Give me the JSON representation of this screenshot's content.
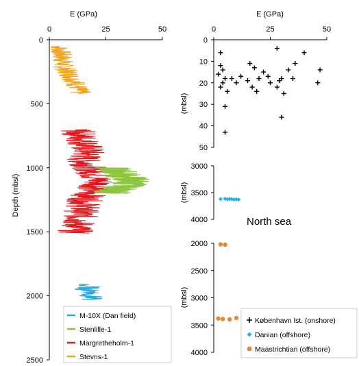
{
  "chart_data": [
    {
      "type": "line",
      "xlabel": "E (GPa)",
      "ylabel": "Depth (mbsl)",
      "xlim": [
        0,
        50
      ],
      "ylim": [
        2500,
        0
      ],
      "x_ticks": [
        "0",
        "25",
        "50"
      ],
      "y_ticks": [
        "0",
        "500",
        "1000",
        "1500",
        "2000",
        "2500"
      ],
      "legend_position": "bottom-right",
      "series": [
        {
          "name": "M-10X (Dan field)",
          "color": "#2aa7de",
          "depth_range": [
            1910,
            2030
          ],
          "profile": [
            [
              1910,
              14
            ],
            [
              1930,
              18
            ],
            [
              1950,
              16
            ],
            [
              1970,
              20
            ],
            [
              1990,
              17
            ],
            [
              2010,
              19
            ],
            [
              2030,
              18
            ]
          ],
          "spread": 5
        },
        {
          "name": "Stenlille-1",
          "color": "#8cc63f",
          "depth_range": [
            1000,
            1200
          ],
          "profile": [
            [
              1000,
              28
            ],
            [
              1040,
              31
            ],
            [
              1070,
              34
            ],
            [
              1100,
              37
            ],
            [
              1130,
              35
            ],
            [
              1160,
              31
            ],
            [
              1200,
              27
            ]
          ],
          "spread": 9
        },
        {
          "name": "Margretheholm-1",
          "color": "#e8151b",
          "depth_range": [
            700,
            1510
          ],
          "profile": [
            [
              700,
              12
            ],
            [
              760,
              14
            ],
            [
              820,
              16
            ],
            [
              880,
              17
            ],
            [
              940,
              15
            ],
            [
              1000,
              18
            ],
            [
              1060,
              20
            ],
            [
              1120,
              22
            ],
            [
              1180,
              19
            ],
            [
              1240,
              16
            ],
            [
              1300,
              15
            ],
            [
              1360,
              14
            ],
            [
              1420,
              13
            ],
            [
              1480,
              12
            ],
            [
              1510,
              11
            ]
          ],
          "spread": 8
        },
        {
          "name": "Stevns-1",
          "color": "#f2a51c",
          "depth_range": [
            50,
            420
          ],
          "profile": [
            [
              50,
              4
            ],
            [
              100,
              5
            ],
            [
              150,
              6
            ],
            [
              200,
              6
            ],
            [
              250,
              8
            ],
            [
              300,
              10
            ],
            [
              350,
              12
            ],
            [
              400,
              13
            ],
            [
              420,
              14
            ]
          ],
          "spread": 5
        }
      ]
    },
    {
      "type": "scatter",
      "xlabel": "E (GPa)",
      "ylabel": "(mbsl)",
      "xlim": [
        0,
        50
      ],
      "ylim": [
        50,
        0
      ],
      "x_ticks": [
        "0",
        "25",
        "50"
      ],
      "y_ticks": [
        "0",
        "10",
        "20",
        "30",
        "40",
        "50"
      ],
      "series": [
        {
          "name": "København lst. (onshore)",
          "color": "#000000",
          "marker": "plus",
          "points": [
            [
              3,
              12
            ],
            [
              4,
              14
            ],
            [
              2,
              16
            ],
            [
              5,
              18
            ],
            [
              4,
              20
            ],
            [
              3,
              22
            ],
            [
              6,
              24
            ],
            [
              8,
              18
            ],
            [
              10,
              20
            ],
            [
              12,
              17
            ],
            [
              15,
              19
            ],
            [
              16,
              11
            ],
            [
              18,
              13
            ],
            [
              17,
              22
            ],
            [
              19,
              24
            ],
            [
              20,
              18
            ],
            [
              22,
              15
            ],
            [
              24,
              17
            ],
            [
              25,
              20
            ],
            [
              28,
              22
            ],
            [
              29,
              19
            ],
            [
              30,
              18
            ],
            [
              31,
              25
            ],
            [
              33,
              14
            ],
            [
              35,
              18
            ],
            [
              36,
              11
            ],
            [
              40,
              6
            ],
            [
              46,
              20
            ],
            [
              47,
              14
            ],
            [
              28,
              4
            ],
            [
              3,
              6
            ],
            [
              5,
              31
            ],
            [
              30,
              36
            ],
            [
              5,
              43
            ]
          ]
        }
      ]
    },
    {
      "type": "scatter",
      "ylabel": "(mbsl)",
      "xlim": [
        0,
        50
      ],
      "ylim": [
        4000,
        3000
      ],
      "y_ticks": [
        "3000",
        "3500",
        "4000"
      ],
      "annotation": "North sea",
      "series": [
        {
          "name": "Danian (offshore)",
          "color": "#1fb3e4",
          "marker": "diamond",
          "points": [
            [
              3,
              3620
            ],
            [
              5,
              3615
            ],
            [
              6,
              3625
            ],
            [
              7,
              3618
            ],
            [
              8,
              3622
            ],
            [
              9,
              3630
            ],
            [
              10,
              3625
            ],
            [
              11,
              3632
            ]
          ]
        }
      ]
    },
    {
      "type": "scatter",
      "ylabel": "(mbsl)",
      "xlim": [
        0,
        50
      ],
      "ylim": [
        4000,
        2000
      ],
      "y_ticks": [
        "2000",
        "2500",
        "3000",
        "3500",
        "4000"
      ],
      "legend_position": "bottom-right",
      "series": [
        {
          "name": "Maastrichtian (offshore)",
          "color": "#e08a3c",
          "marker": "circle",
          "points": [
            [
              3,
              2020
            ],
            [
              5,
              2025
            ],
            [
              2,
              3380
            ],
            [
              4,
              3390
            ],
            [
              7,
              3395
            ],
            [
              10,
              3370
            ]
          ]
        }
      ]
    }
  ]
}
